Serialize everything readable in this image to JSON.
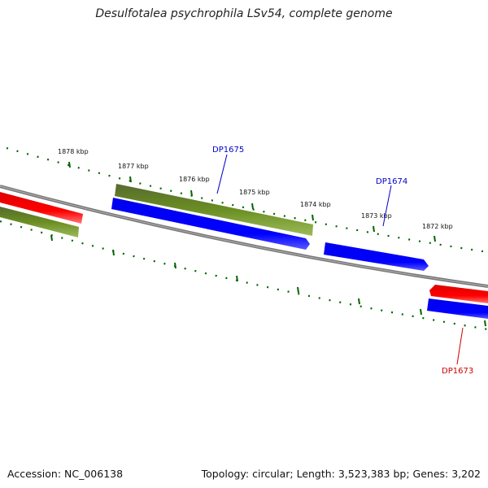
{
  "title": "Desulfotalea psychrophila LSv54, complete genome",
  "footer": {
    "accession": "Accession: NC_006138",
    "summary": "Topology: circular; Length: 3,523,383 bp; Genes: 3,202"
  },
  "ticks": [
    {
      "kbp": 1878,
      "label": "1878 kbp"
    },
    {
      "kbp": 1877,
      "label": "1877 kbp"
    },
    {
      "kbp": 1876,
      "label": "1876 kbp"
    },
    {
      "kbp": 1875,
      "label": "1875 kbp"
    },
    {
      "kbp": 1874,
      "label": "1874 kbp"
    },
    {
      "kbp": 1873,
      "label": "1873 kbp"
    },
    {
      "kbp": 1872,
      "label": "1872 kbp"
    }
  ],
  "gene_labels": [
    {
      "name": "DP1675",
      "color": "#0000cc"
    },
    {
      "name": "DP1674",
      "color": "#0000cc"
    },
    {
      "name": "DP1673",
      "color": "#cc0000"
    }
  ],
  "colors": {
    "forward_cds": "#ff0000",
    "reverse_cds": "#0000ff",
    "gene": "#6b8e23",
    "backbone": "#808080",
    "ticks": "#006400"
  }
}
